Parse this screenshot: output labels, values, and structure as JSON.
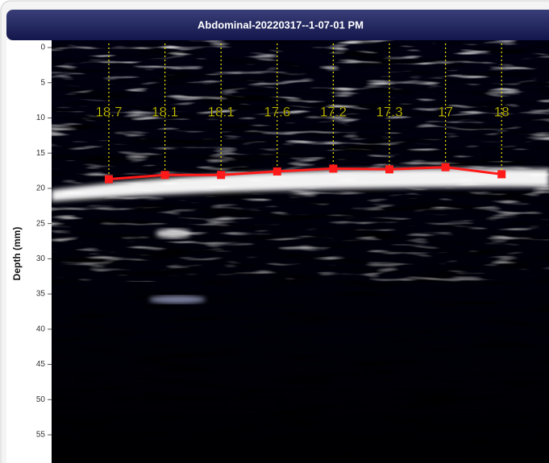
{
  "chart_data": {
    "type": "scatter",
    "title": "Abdominal-20220317--1-07-01 PM",
    "y_label": "Depth (mm)",
    "categories": [
      null,
      null,
      null,
      null,
      null,
      null,
      null,
      null
    ],
    "values": [
      18.7,
      18.1,
      18.1,
      17.6,
      17.2,
      17.3,
      17.0,
      18.0
    ],
    "color": "#ff1a1a",
    "label_color": "#f2e600",
    "ylim": [
      0,
      59
    ],
    "yticks": [
      0,
      5,
      10,
      15,
      20,
      25,
      30,
      35,
      40,
      45,
      50,
      55
    ]
  }
}
